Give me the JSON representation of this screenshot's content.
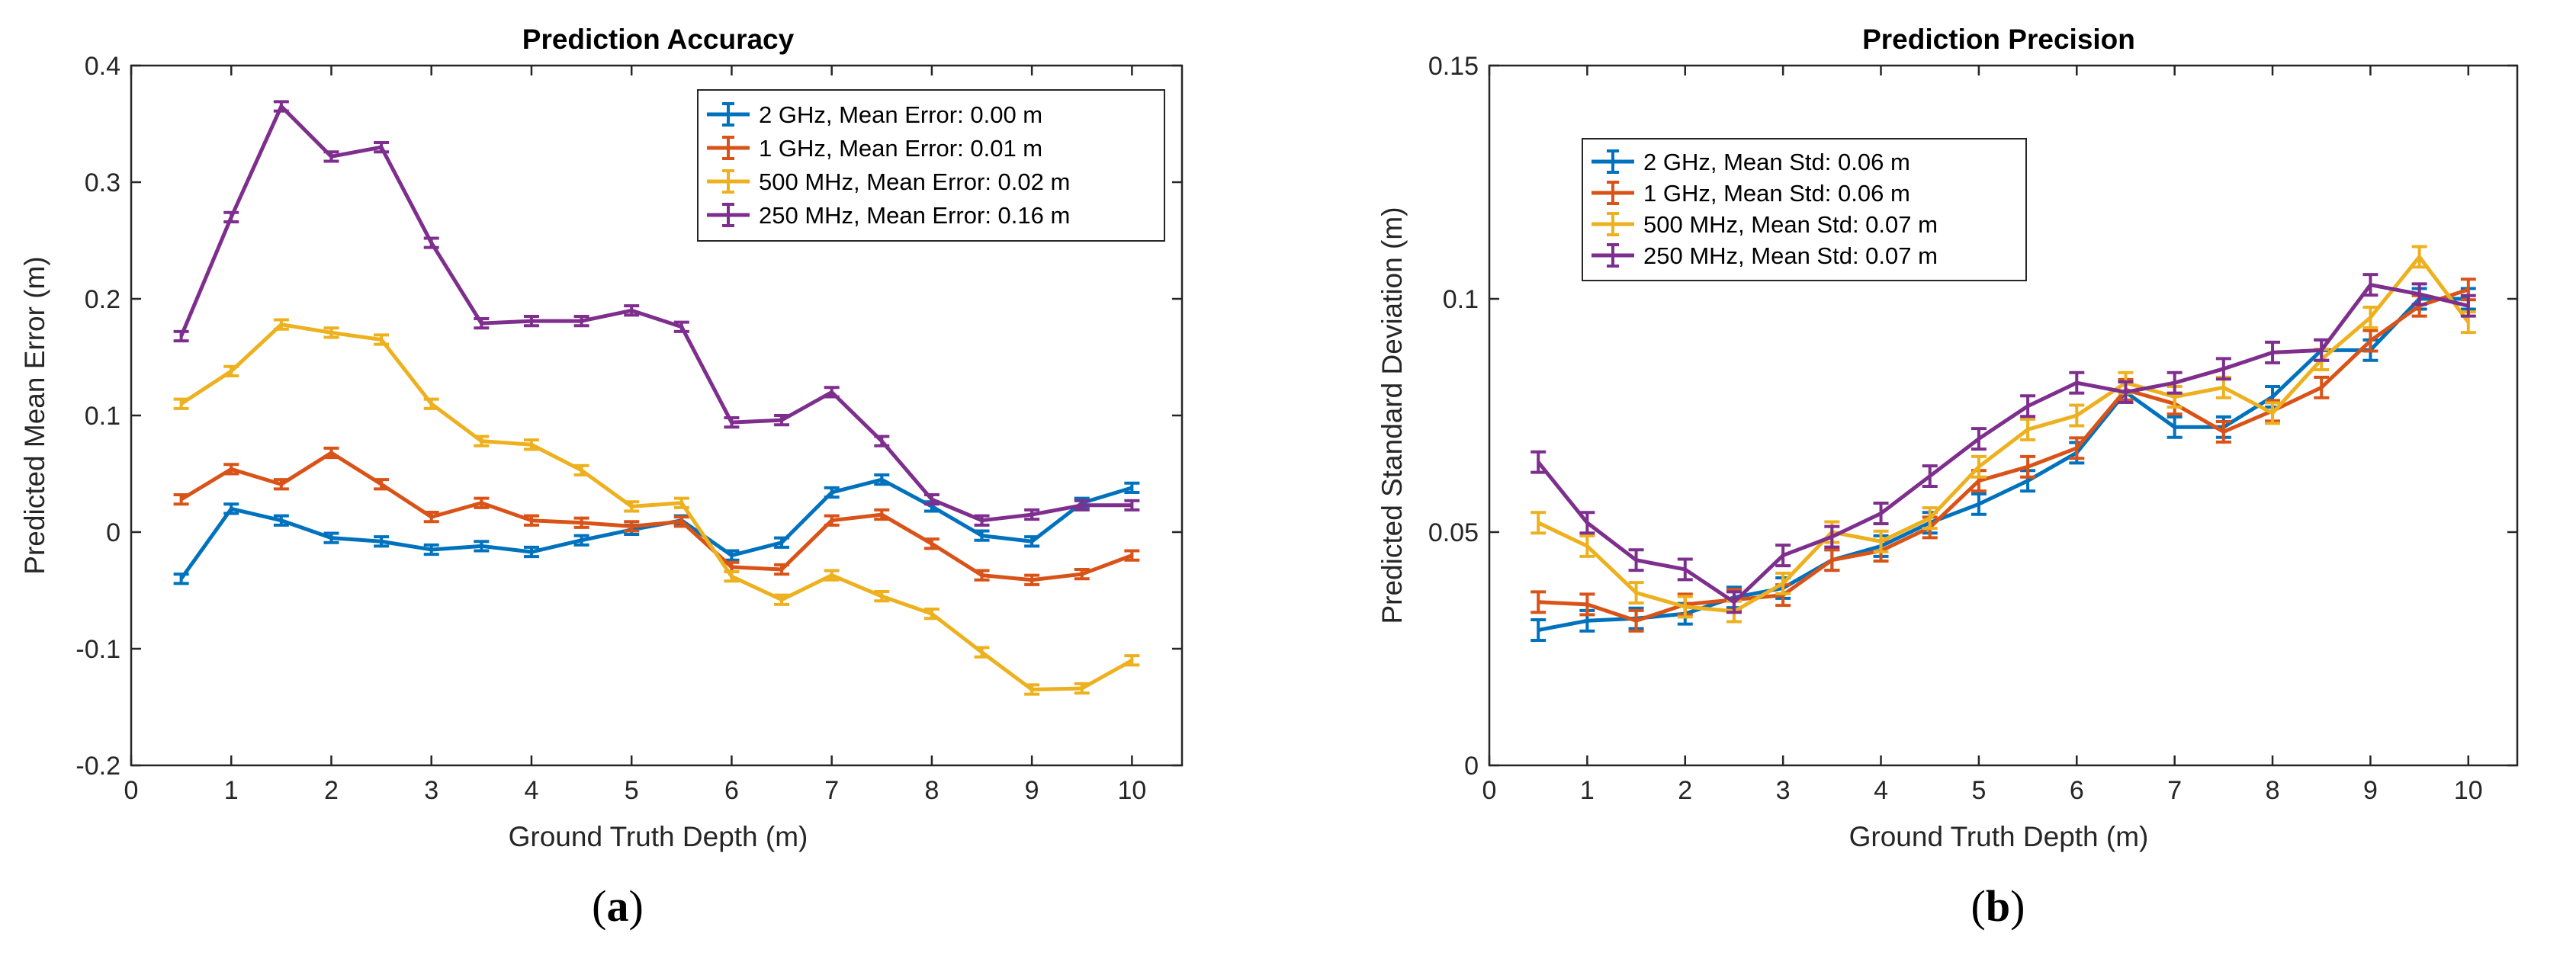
{
  "chart_data": [
    {
      "type": "line",
      "panel_label": "a",
      "title": "Prediction Accuracy",
      "xlabel": "Ground Truth Depth (m)",
      "ylabel": "Predicted Mean Error (m)",
      "xlim": [
        0,
        10.5
      ],
      "ylim": [
        -0.2,
        0.4
      ],
      "xticks": [
        "0",
        "1",
        "2",
        "3",
        "4",
        "5",
        "6",
        "7",
        "8",
        "9",
        "10"
      ],
      "yticks": [
        "-0.2",
        "-0.1",
        "0",
        "0.1",
        "0.2",
        "0.3",
        "0.4"
      ],
      "grid": false,
      "legend_position": "top-right",
      "x": [
        0.5,
        1,
        1.5,
        2,
        2.5,
        3,
        3.5,
        4,
        4.5,
        5,
        5.5,
        6,
        6.5,
        7,
        7.5,
        8,
        8.5,
        9,
        9.5,
        10
      ],
      "series": [
        {
          "name": "2 GHz, Mean Error: 0.00 m",
          "color": "#0072BD",
          "values": [
            -0.04,
            0.02,
            0.01,
            -0.005,
            -0.008,
            -0.015,
            -0.012,
            -0.017,
            -0.007,
            0.002,
            0.01,
            -0.02,
            -0.009,
            0.034,
            0.045,
            0.022,
            -0.003,
            -0.008,
            0.025,
            0.038
          ],
          "error": 0.004
        },
        {
          "name": "1 GHz, Mean Error: 0.01 m",
          "color": "#D95319",
          "values": [
            0.028,
            0.054,
            0.041,
            0.068,
            0.041,
            0.013,
            0.025,
            0.01,
            0.008,
            0.005,
            0.009,
            -0.03,
            -0.032,
            0.01,
            0.015,
            -0.01,
            -0.037,
            -0.041,
            -0.036,
            -0.02
          ],
          "error": 0.004
        },
        {
          "name": "500 MHz, Mean Error: 0.02 m",
          "color": "#EDB120",
          "values": [
            0.11,
            0.138,
            0.178,
            0.171,
            0.165,
            0.11,
            0.078,
            0.075,
            0.053,
            0.022,
            0.025,
            -0.038,
            -0.058,
            -0.037,
            -0.055,
            -0.07,
            -0.103,
            -0.135,
            -0.134,
            -0.11
          ],
          "error": 0.004
        },
        {
          "name": "250 MHz, Mean Error: 0.16 m",
          "color": "#7E2F8E",
          "values": [
            0.168,
            0.27,
            0.365,
            0.322,
            0.33,
            0.248,
            0.179,
            0.181,
            0.181,
            0.19,
            0.176,
            0.094,
            0.096,
            0.12,
            0.078,
            0.028,
            0.01,
            0.015,
            0.023,
            0.023
          ],
          "error": 0.004
        }
      ]
    },
    {
      "type": "line",
      "panel_label": "b",
      "title": "Prediction Precision",
      "xlabel": "Ground Truth Depth (m)",
      "ylabel": "Predicted Standard Deviation (m)",
      "xlim": [
        0,
        10.5
      ],
      "ylim": [
        0,
        0.15
      ],
      "xticks": [
        "0",
        "1",
        "2",
        "3",
        "4",
        "5",
        "6",
        "7",
        "8",
        "9",
        "10"
      ],
      "yticks": [
        "0",
        "0.05",
        "0.1",
        "0.15"
      ],
      "grid": false,
      "legend_position": "top-left",
      "x": [
        0.5,
        1,
        1.5,
        2,
        2.5,
        3,
        3.5,
        4,
        4.5,
        5,
        5.5,
        6,
        6.5,
        7,
        7.5,
        8,
        8.5,
        9,
        9.5,
        10
      ],
      "series": [
        {
          "name": "2 GHz, Mean Std: 0.06 m",
          "color": "#0072BD",
          "values": [
            0.029,
            0.031,
            0.0315,
            0.0325,
            0.036,
            0.038,
            0.044,
            0.047,
            0.052,
            0.056,
            0.061,
            0.067,
            0.08,
            0.0725,
            0.0725,
            0.079,
            0.089,
            0.089,
            0.1,
            0.1
          ],
          "error": 0.0022
        },
        {
          "name": "1 GHz, Mean Std: 0.06 m",
          "color": "#D95319",
          "values": [
            0.035,
            0.0345,
            0.031,
            0.0345,
            0.0355,
            0.0365,
            0.044,
            0.046,
            0.051,
            0.061,
            0.064,
            0.068,
            0.0805,
            0.0775,
            0.0715,
            0.076,
            0.081,
            0.091,
            0.0985,
            0.102
          ],
          "error": 0.0022
        },
        {
          "name": "500 MHz, Mean Std: 0.07 m",
          "color": "#EDB120",
          "values": [
            0.052,
            0.047,
            0.037,
            0.034,
            0.033,
            0.039,
            0.05,
            0.048,
            0.053,
            0.064,
            0.072,
            0.075,
            0.082,
            0.079,
            0.081,
            0.0755,
            0.087,
            0.096,
            0.109,
            0.095
          ],
          "error": 0.0022
        },
        {
          "name": "250 MHz, Mean Std: 0.07 m",
          "color": "#7E2F8E",
          "values": [
            0.065,
            0.052,
            0.044,
            0.042,
            0.035,
            0.045,
            0.049,
            0.054,
            0.062,
            0.07,
            0.077,
            0.082,
            0.08,
            0.082,
            0.085,
            0.0885,
            0.089,
            0.103,
            0.101,
            0.0985
          ],
          "error": 0.0022
        }
      ]
    }
  ]
}
